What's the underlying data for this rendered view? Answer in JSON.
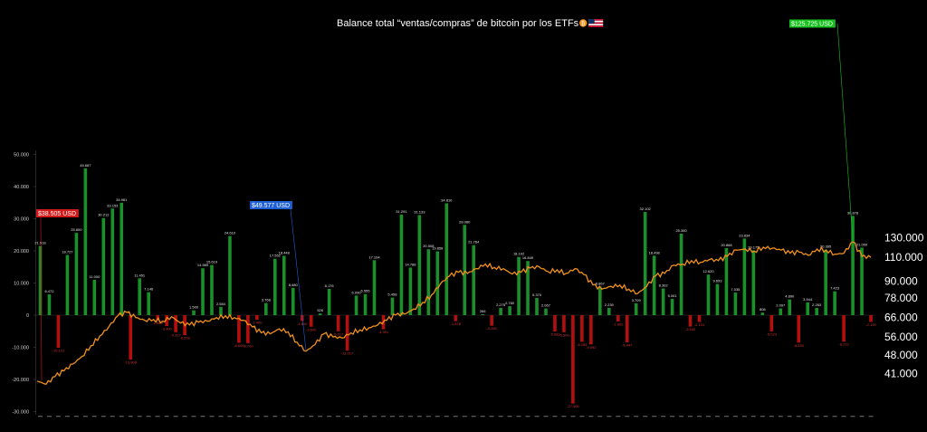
{
  "chart_data": {
    "type": "bar",
    "title": "Balance total “ventas/compras” de bitcoin por los ETFs",
    "title_icons": [
      "bitcoin-icon",
      "us-flag-icon"
    ],
    "grid": false,
    "legend": "none",
    "colors": {
      "positive": "#1a8f2a",
      "negative": "#b40f0f",
      "price_line": "#f0901c",
      "background": "#000000"
    },
    "left_axis": {
      "ylim": [
        -30000,
        50000
      ],
      "ticks": [
        "50.000",
        "40.000",
        "30.000",
        "20.000",
        "10.000",
        "0",
        "-10.000",
        "-20.000",
        "-30.000"
      ]
    },
    "right_axis": {
      "scale": "log",
      "ylim": [
        35000,
        135000
      ],
      "ticks": [
        "130.000",
        "110.000",
        "90.000",
        "78.000",
        "66.000",
        "56.000",
        "48.000",
        "41.000"
      ]
    },
    "weekly_balance": [
      {
        "value": 21518,
        "label": "21.518"
      },
      {
        "value": 6472,
        "label": "6.472"
      },
      {
        "value": -10131,
        "label": "-10.131"
      },
      {
        "value": 18727,
        "label": "18.727"
      },
      {
        "value": 25600,
        "label": "25.600"
      },
      {
        "value": 45687,
        "label": "45.687"
      },
      {
        "value": 11000,
        "label": "11.000"
      },
      {
        "value": 30212,
        "label": "30.212"
      },
      {
        "value": 33153,
        "label": "33.153"
      },
      {
        "value": 34981,
        "label": "34.981"
      },
      {
        "value": -13808,
        "label": "-13.808"
      },
      {
        "value": 11451,
        "label": "11.451"
      },
      {
        "value": 7146,
        "label": "7.146"
      },
      {
        "value": -1600,
        "label": "-1.600"
      },
      {
        "value": -3400,
        "label": "-3.400"
      },
      {
        "value": -5317,
        "label": "-5.317"
      },
      {
        "value": -6208,
        "label": "-6.208"
      },
      {
        "value": 1500,
        "label": "1.500"
      },
      {
        "value": 14589,
        "label": "14.589"
      },
      {
        "value": 15619,
        "label": "15.619"
      },
      {
        "value": 2584,
        "label": "2.584"
      },
      {
        "value": 24610,
        "label": "24.610"
      },
      {
        "value": -8600,
        "label": "-8.600"
      },
      {
        "value": -8700,
        "label": "-8.700"
      },
      {
        "value": -1400,
        "label": "-1.400"
      },
      {
        "value": 3768,
        "label": "3.768"
      },
      {
        "value": 17552,
        "label": "17.552"
      },
      {
        "value": 18448,
        "label": "18.448"
      },
      {
        "value": 8480,
        "label": "8.480"
      },
      {
        "value": -1800,
        "label": "-1.800"
      },
      {
        "value": -3600,
        "label": "-3.600"
      },
      {
        "value": 526,
        "label": "526"
      },
      {
        "value": 8176,
        "label": "8.176"
      },
      {
        "value": -5017,
        "label": "-5.017"
      },
      {
        "value": -11017,
        "label": "-11.017"
      },
      {
        "value": 6090,
        "label": "6.090"
      },
      {
        "value": 6555,
        "label": "6.555"
      },
      {
        "value": 17104,
        "label": "17.104"
      },
      {
        "value": -4391,
        "label": "-4.391"
      },
      {
        "value": 5458,
        "label": "5.458"
      },
      {
        "value": 31291,
        "label": "31.291"
      },
      {
        "value": 14788,
        "label": "14.788"
      },
      {
        "value": 31133,
        "label": "31.133"
      },
      {
        "value": 20508,
        "label": "20.508"
      },
      {
        "value": 19858,
        "label": "19.858"
      },
      {
        "value": 34810,
        "label": "34.810"
      },
      {
        "value": -1878,
        "label": "-1.878"
      },
      {
        "value": 28080,
        "label": "28.080"
      },
      {
        "value": 21764,
        "label": "21.764"
      },
      {
        "value": 266,
        "label": "266"
      },
      {
        "value": -3280,
        "label": "-3.280"
      },
      {
        "value": 2275,
        "label": "2.275"
      },
      {
        "value": 2780,
        "label": "2.780"
      },
      {
        "value": 18102,
        "label": "18.102"
      },
      {
        "value": 16849,
        "label": "16.849"
      },
      {
        "value": 5370,
        "label": "5.370"
      },
      {
        "value": 2067,
        "label": "2.067"
      },
      {
        "value": -5083,
        "label": "-5.083"
      },
      {
        "value": -5300,
        "label": "-5.300"
      },
      {
        "value": -27500,
        "label": "-27.500"
      },
      {
        "value": -8284,
        "label": "-8.284"
      },
      {
        "value": -9092,
        "label": "-9.092"
      },
      {
        "value": 8867,
        "label": "8.867"
      },
      {
        "value": 2239,
        "label": "2.239"
      },
      {
        "value": -1962,
        "label": "-1.962"
      },
      {
        "value": -8447,
        "label": "-8.447"
      },
      {
        "value": 3709,
        "label": "3.709"
      },
      {
        "value": 32102,
        "label": "32.102"
      },
      {
        "value": 18498,
        "label": "18.498"
      },
      {
        "value": 8302,
        "label": "8.302"
      },
      {
        "value": 5061,
        "label": "5.061"
      },
      {
        "value": 25360,
        "label": "25.360"
      },
      {
        "value": -3540,
        "label": "-3.540"
      },
      {
        "value": -2131,
        "label": "-2.131"
      },
      {
        "value": 12620,
        "label": "12.620"
      },
      {
        "value": 9693,
        "label": "9.693"
      },
      {
        "value": 20868,
        "label": "20.868"
      },
      {
        "value": 7035,
        "label": "7.035"
      },
      {
        "value": 23834,
        "label": "23.834"
      },
      {
        "value": 20175,
        "label": "20.175"
      },
      {
        "value": 808,
        "label": "808"
      },
      {
        "value": -5023,
        "label": "-5.023"
      },
      {
        "value": 2097,
        "label": "2.097"
      },
      {
        "value": 4890,
        "label": "4.890"
      },
      {
        "value": -8530,
        "label": "-8.530"
      },
      {
        "value": 3944,
        "label": "3.944"
      },
      {
        "value": 2263,
        "label": "2.263"
      },
      {
        "value": 20395,
        "label": "20.395"
      },
      {
        "value": 7423,
        "label": "7.423"
      },
      {
        "value": -8212,
        "label": "-8.212"
      },
      {
        "value": 30878,
        "label": "30.878"
      },
      {
        "value": 21000,
        "label": "21.000"
      },
      {
        "value": -2100,
        "label": "-2.100"
      }
    ],
    "price_line_points": [
      [
        0,
        38505
      ],
      [
        1,
        37500
      ],
      [
        2,
        40000
      ],
      [
        3,
        42000
      ],
      [
        4,
        44500
      ],
      [
        5,
        47500
      ],
      [
        6,
        52000
      ],
      [
        7,
        56500
      ],
      [
        8,
        61000
      ],
      [
        9,
        67000
      ],
      [
        10,
        69000
      ],
      [
        11,
        66000
      ],
      [
        12,
        64500
      ],
      [
        13,
        65000
      ],
      [
        14,
        64000
      ],
      [
        15,
        66500
      ],
      [
        16,
        63000
      ],
      [
        17,
        62000
      ],
      [
        18,
        63500
      ],
      [
        19,
        64000
      ],
      [
        20,
        66000
      ],
      [
        21,
        67000
      ],
      [
        22,
        66000
      ],
      [
        23,
        64500
      ],
      [
        24,
        61000
      ],
      [
        25,
        58000
      ],
      [
        26,
        57500
      ],
      [
        27,
        60000
      ],
      [
        28,
        58500
      ],
      [
        29,
        53500
      ],
      [
        30,
        49577
      ],
      [
        31,
        52500
      ],
      [
        32,
        57500
      ],
      [
        33,
        56000
      ],
      [
        34,
        55500
      ],
      [
        35,
        58000
      ],
      [
        36,
        59500
      ],
      [
        37,
        60500
      ],
      [
        38,
        62000
      ],
      [
        39,
        64500
      ],
      [
        40,
        67500
      ],
      [
        41,
        68000
      ],
      [
        42,
        71000
      ],
      [
        43,
        75000
      ],
      [
        44,
        80000
      ],
      [
        45,
        88000
      ],
      [
        46,
        94000
      ],
      [
        47,
        97000
      ],
      [
        48,
        96000
      ],
      [
        49,
        100000
      ],
      [
        50,
        104000
      ],
      [
        51,
        101000
      ],
      [
        52,
        100000
      ],
      [
        53,
        95500
      ],
      [
        54,
        97000
      ],
      [
        55,
        100500
      ],
      [
        56,
        101500
      ],
      [
        57,
        97500
      ],
      [
        58,
        99000
      ],
      [
        59,
        96000
      ],
      [
        60,
        100000
      ],
      [
        61,
        95000
      ],
      [
        62,
        87000
      ],
      [
        63,
        84000
      ],
      [
        64,
        86000
      ],
      [
        65,
        87000
      ],
      [
        66,
        84000
      ],
      [
        67,
        81000
      ],
      [
        68,
        86000
      ],
      [
        69,
        94000
      ],
      [
        70,
        96000
      ],
      [
        71,
        103000
      ],
      [
        72,
        104000
      ],
      [
        73,
        107000
      ],
      [
        74,
        105500
      ],
      [
        75,
        108000
      ],
      [
        76,
        107000
      ],
      [
        77,
        111000
      ],
      [
        78,
        117000
      ],
      [
        79,
        118000
      ],
      [
        80,
        116000
      ],
      [
        81,
        120000
      ],
      [
        82,
        119000
      ],
      [
        83,
        117000
      ],
      [
        84,
        114000
      ],
      [
        85,
        115000
      ],
      [
        86,
        112000
      ],
      [
        87,
        118000
      ],
      [
        88,
        117000
      ],
      [
        89,
        113000
      ],
      [
        90,
        114000
      ],
      [
        91,
        125725
      ],
      [
        92,
        111000
      ],
      [
        93,
        110000
      ]
    ],
    "callouts": {
      "start": "$38.505 USD",
      "low": "$49.577 USD",
      "high": "$125.725 USD"
    }
  }
}
